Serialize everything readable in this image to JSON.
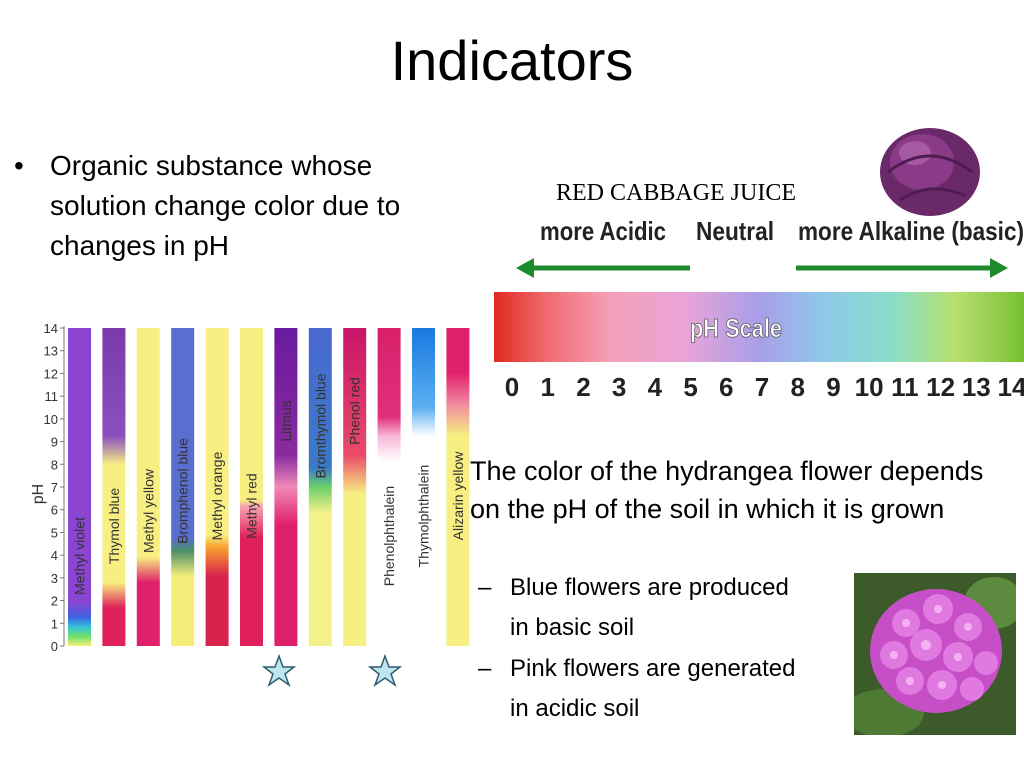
{
  "slide": {
    "title": "Indicators",
    "bullet": {
      "marker": "•",
      "text": "Organic substance whose solution change color due to changes in pH"
    }
  },
  "cabbage_scale": {
    "label": "RED CABBAGE JUICE",
    "left_heading": "more Acidic",
    "middle_heading": "Neutral",
    "right_heading": "more Alkaline (basic)",
    "bar_label": "pH Scale",
    "numbers": [
      "0",
      "1",
      "2",
      "3",
      "4",
      "5",
      "6",
      "7",
      "8",
      "9",
      "10",
      "11",
      "12",
      "13",
      "14"
    ],
    "arrow_color": "#1e8a2e"
  },
  "indicator_chart": {
    "y_axis_label": "pH",
    "ticks": [
      "0",
      "1",
      "2",
      "3",
      "4",
      "5",
      "6",
      "7",
      "8",
      "9",
      "10",
      "11",
      "12",
      "13",
      "14"
    ],
    "indicators": [
      {
        "name": "Methyl violet"
      },
      {
        "name": "Thymol blue"
      },
      {
        "name": "Methyl yellow"
      },
      {
        "name": "Bromphenol blue"
      },
      {
        "name": "Methyl orange"
      },
      {
        "name": "Methyl red"
      },
      {
        "name": "Litmus"
      },
      {
        "name": "Bromthymol blue"
      },
      {
        "name": "Phenol red"
      },
      {
        "name": "Phenolphthalein"
      },
      {
        "name": "Thymolphthalein"
      },
      {
        "name": "Alizarin yellow"
      }
    ],
    "starred": [
      "Litmus",
      "Phenolphthalein"
    ]
  },
  "hydrangea": {
    "text": "The color of the hydrangea flower depends on the pH of the soil in which it is grown",
    "points": [
      {
        "dash": "–",
        "line1": "Blue flowers are produced",
        "line2": "in basic soil"
      },
      {
        "dash": "–",
        "line1": "Pink flowers are generated",
        "line2": "in acidic soil"
      }
    ]
  }
}
